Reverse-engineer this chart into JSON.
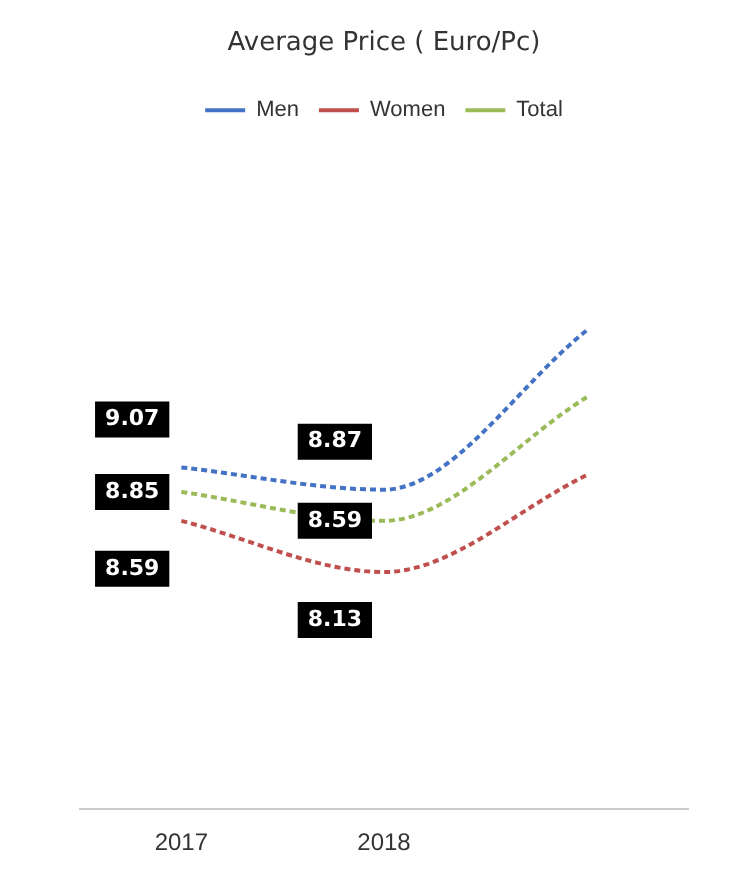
{
  "chart_data": {
    "type": "line",
    "title": "Average Price ( Euro/Pc)",
    "categories": [
      "2017",
      "2018",
      null
    ],
    "series": [
      {
        "name": "Men",
        "color": "#4472c4",
        "values": [
          9.07,
          8.87,
          10.3
        ],
        "value_labels": [
          "9.07",
          "8.87",
          null
        ]
      },
      {
        "name": "Women",
        "color": "#c0504d",
        "values": [
          8.59,
          8.13,
          9.0
        ],
        "value_labels": [
          "8.59",
          "8.13",
          null
        ]
      },
      {
        "name": "Total",
        "color": "#9bbb59",
        "values": [
          8.85,
          8.59,
          9.7
        ],
        "value_labels": [
          "8.85",
          "8.59",
          null
        ]
      }
    ],
    "line_style": "dashed",
    "legend": "top",
    "grid": false,
    "tick_labels": "x"
  }
}
